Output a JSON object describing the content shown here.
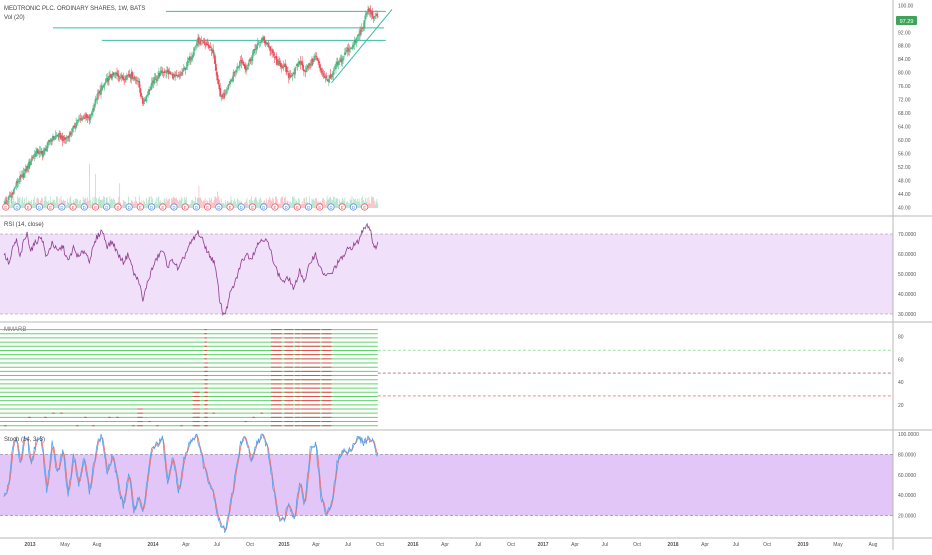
{
  "header": {
    "symbol_line": "MEDTRONIC PLC. ORDINARY SHARES, 1W, BATS",
    "volume_label": "Vol (20)"
  },
  "price_badge": "97.29",
  "colors": {
    "up": "#53b987",
    "down": "#eb4d5c",
    "rsi_line": "#8e3d8e",
    "rsi_band": "#f1e0f9",
    "stoch_band": "#e2c6f8",
    "stoch_k": "#4ba3ee",
    "stoch_d": "#ee6f6f",
    "trendline": "#3cbca4",
    "mma_green": "#61d36d",
    "mma_red": "#e34b4b",
    "badge": "#40a35b"
  },
  "chart_data": [
    {
      "type": "candlestick",
      "name": "price",
      "x_ticks": [
        "2013",
        "May",
        "Aug",
        "2014",
        "Apr",
        "Jul",
        "Oct",
        "2015",
        "Apr",
        "Jul",
        "Oct",
        "2016",
        "Apr",
        "Jul",
        "Oct",
        "2017",
        "Apr",
        "Jul",
        "Oct",
        "2018",
        "Apr",
        "Jul",
        "Oct",
        "2019",
        "May",
        "Aug"
      ],
      "y_ticks": [
        "100.00",
        "96.00",
        "92.00",
        "88.00",
        "84.00",
        "80.00",
        "76.00",
        "72.00",
        "68.00",
        "64.00",
        "60.00",
        "56.00",
        "52.00",
        "48.00",
        "44.00",
        "40.00"
      ],
      "ylim": [
        38,
        101
      ],
      "last_price": 97.29,
      "earnings_marker": "E",
      "dividend_marker": "D",
      "close_path": [
        [
          0,
          41.0
        ],
        [
          8,
          43.5
        ],
        [
          16,
          48.0
        ],
        [
          22,
          49.5
        ],
        [
          30,
          54.0
        ],
        [
          36,
          56.5
        ],
        [
          44,
          56.0
        ],
        [
          52,
          60.0
        ],
        [
          60,
          61.5
        ],
        [
          68,
          60.0
        ],
        [
          76,
          62.5
        ],
        [
          82,
          65.5
        ],
        [
          90,
          67.0
        ],
        [
          96,
          66.0
        ],
        [
          104,
          72.5
        ],
        [
          110,
          75.5
        ],
        [
          118,
          78.5
        ],
        [
          126,
          79.5
        ],
        [
          134,
          78.5
        ],
        [
          140,
          79.5
        ],
        [
          150,
          78.0
        ],
        [
          156,
          71.0
        ],
        [
          160,
          73.0
        ],
        [
          168,
          77.5
        ],
        [
          176,
          80.0
        ],
        [
          182,
          80.5
        ],
        [
          190,
          79.0
        ],
        [
          196,
          78.5
        ],
        [
          204,
          81.5
        ],
        [
          212,
          86.0
        ],
        [
          218,
          89.5
        ],
        [
          226,
          88.5
        ],
        [
          232,
          87.5
        ],
        [
          236,
          85.0
        ],
        [
          240,
          77.0
        ],
        [
          244,
          72.5
        ],
        [
          248,
          74.0
        ],
        [
          254,
          77.5
        ],
        [
          260,
          80.5
        ],
        [
          266,
          83.5
        ],
        [
          272,
          81.5
        ],
        [
          278,
          84.5
        ],
        [
          284,
          88.0
        ],
        [
          290,
          90.0
        ],
        [
          296,
          88.5
        ],
        [
          302,
          85.5
        ],
        [
          308,
          82.5
        ],
        [
          314,
          82.0
        ],
        [
          320,
          79.0
        ],
        [
          326,
          80.0
        ],
        [
          332,
          83.5
        ],
        [
          338,
          80.5
        ],
        [
          344,
          82.5
        ],
        [
          350,
          85.0
        ],
        [
          356,
          81.0
        ],
        [
          362,
          78.0
        ],
        [
          368,
          78.5
        ],
        [
          374,
          82.5
        ],
        [
          380,
          84.0
        ],
        [
          386,
          87.0
        ],
        [
          392,
          88.0
        ],
        [
          398,
          91.0
        ],
        [
          404,
          94.0
        ],
        [
          408,
          98.5
        ],
        [
          412,
          98.0
        ],
        [
          416,
          96.0
        ],
        [
          420,
          97.29
        ]
      ],
      "volume_spikes": [
        [
          96,
          80
        ],
        [
          103,
          62
        ],
        [
          130,
          45
        ],
        [
          219,
          40
        ],
        [
          240,
          30
        ]
      ],
      "resistance_levels": [
        {
          "value": 98.2,
          "from_week": 182,
          "to_week": 420
        },
        {
          "value": 93.3,
          "from_week": 55,
          "to_week": 418
        },
        {
          "value": 89.6,
          "from_week": 110,
          "to_week": 420
        }
      ],
      "support_trendline": [
        [
          368,
          77.0
        ],
        [
          436,
          98.8
        ]
      ]
    },
    {
      "type": "line",
      "name": "RSI (14, close)",
      "y_ticks": [
        "70.0000",
        "60.0000",
        "50.0000",
        "40.0000",
        "30.0000"
      ],
      "ylim": [
        27,
        77
      ],
      "upper_band": 70,
      "lower_band": 30,
      "values_path": [
        [
          0,
          60
        ],
        [
          6,
          55
        ],
        [
          10,
          63
        ],
        [
          14,
          67
        ],
        [
          18,
          58
        ],
        [
          22,
          66
        ],
        [
          26,
          70
        ],
        [
          30,
          62
        ],
        [
          36,
          66
        ],
        [
          42,
          69
        ],
        [
          48,
          58
        ],
        [
          54,
          66
        ],
        [
          60,
          61
        ],
        [
          66,
          64
        ],
        [
          72,
          56
        ],
        [
          78,
          63
        ],
        [
          84,
          58
        ],
        [
          90,
          62
        ],
        [
          96,
          57
        ],
        [
          104,
          68
        ],
        [
          110,
          72
        ],
        [
          116,
          64
        ],
        [
          122,
          66
        ],
        [
          128,
          60
        ],
        [
          134,
          56
        ],
        [
          140,
          60
        ],
        [
          146,
          50
        ],
        [
          152,
          46
        ],
        [
          156,
          36
        ],
        [
          160,
          44
        ],
        [
          166,
          52
        ],
        [
          172,
          58
        ],
        [
          178,
          62
        ],
        [
          184,
          54
        ],
        [
          190,
          57
        ],
        [
          196,
          52
        ],
        [
          202,
          58
        ],
        [
          208,
          64
        ],
        [
          214,
          68
        ],
        [
          218,
          71
        ],
        [
          224,
          66
        ],
        [
          230,
          60
        ],
        [
          236,
          56
        ],
        [
          240,
          46
        ],
        [
          242,
          38
        ],
        [
          246,
          30
        ],
        [
          250,
          32
        ],
        [
          254,
          40
        ],
        [
          260,
          46
        ],
        [
          266,
          55
        ],
        [
          272,
          60
        ],
        [
          278,
          58
        ],
        [
          284,
          64
        ],
        [
          290,
          68
        ],
        [
          296,
          66
        ],
        [
          302,
          58
        ],
        [
          308,
          50
        ],
        [
          314,
          46
        ],
        [
          320,
          48
        ],
        [
          326,
          42
        ],
        [
          332,
          52
        ],
        [
          338,
          46
        ],
        [
          344,
          56
        ],
        [
          350,
          60
        ],
        [
          356,
          52
        ],
        [
          362,
          49
        ],
        [
          368,
          50
        ],
        [
          374,
          55
        ],
        [
          380,
          58
        ],
        [
          386,
          62
        ],
        [
          392,
          64
        ],
        [
          398,
          66
        ],
        [
          404,
          73
        ],
        [
          408,
          75
        ],
        [
          412,
          72
        ],
        [
          416,
          62
        ],
        [
          420,
          66
        ]
      ]
    },
    {
      "type": "ribbon",
      "name": "MMARB",
      "y_ticks": [
        "80",
        "60",
        "40",
        "20"
      ],
      "ylim": [
        0,
        90
      ],
      "line_count": 24,
      "reference_levels": [
        {
          "value": 68,
          "color": "#61d36d"
        },
        {
          "value": 48,
          "color": "#8c3d3d"
        },
        {
          "value": 28,
          "color": "#e34b4b"
        }
      ],
      "red_zones": [
        {
          "from_week": 225,
          "to_week": 228,
          "lines": 24
        },
        {
          "from_week": 226,
          "to_week": 229,
          "lines": 16
        },
        {
          "from_week": 212,
          "to_week": 220,
          "lines": 9
        },
        {
          "from_week": 150,
          "to_week": 156,
          "lines": 5
        },
        {
          "from_week": 300,
          "to_week": 312,
          "lines": 24
        },
        {
          "from_week": 315,
          "to_week": 325,
          "lines": 24
        },
        {
          "from_week": 327,
          "to_week": 333,
          "lines": 24
        },
        {
          "from_week": 334,
          "to_week": 355,
          "lines": 24
        },
        {
          "from_week": 357,
          "to_week": 368,
          "lines": 24
        }
      ]
    },
    {
      "type": "line",
      "name": "Stoch (14, 3, 3)",
      "y_ticks": [
        "100.0000",
        "80.0000",
        "60.0000",
        "40.0000",
        "20.0000"
      ],
      "ylim": [
        0,
        102
      ],
      "upper_band": 80,
      "lower_band": 20,
      "k_path": [
        [
          0,
          35
        ],
        [
          6,
          55
        ],
        [
          10,
          88
        ],
        [
          14,
          95
        ],
        [
          18,
          70
        ],
        [
          22,
          92
        ],
        [
          26,
          98
        ],
        [
          30,
          70
        ],
        [
          36,
          92
        ],
        [
          42,
          95
        ],
        [
          48,
          45
        ],
        [
          54,
          90
        ],
        [
          60,
          60
        ],
        [
          66,
          85
        ],
        [
          72,
          40
        ],
        [
          78,
          82
        ],
        [
          84,
          50
        ],
        [
          90,
          80
        ],
        [
          96,
          40
        ],
        [
          104,
          90
        ],
        [
          110,
          98
        ],
        [
          116,
          60
        ],
        [
          122,
          80
        ],
        [
          128,
          50
        ],
        [
          134,
          30
        ],
        [
          140,
          60
        ],
        [
          146,
          25
        ],
        [
          152,
          40
        ],
        [
          156,
          20
        ],
        [
          160,
          50
        ],
        [
          166,
          85
        ],
        [
          172,
          90
        ],
        [
          178,
          95
        ],
        [
          184,
          50
        ],
        [
          190,
          80
        ],
        [
          196,
          40
        ],
        [
          202,
          75
        ],
        [
          208,
          92
        ],
        [
          214,
          98
        ],
        [
          218,
          95
        ],
        [
          224,
          70
        ],
        [
          230,
          55
        ],
        [
          236,
          40
        ],
        [
          240,
          20
        ],
        [
          244,
          10
        ],
        [
          248,
          5
        ],
        [
          254,
          30
        ],
        [
          260,
          60
        ],
        [
          266,
          92
        ],
        [
          272,
          96
        ],
        [
          278,
          70
        ],
        [
          284,
          92
        ],
        [
          290,
          98
        ],
        [
          296,
          88
        ],
        [
          302,
          50
        ],
        [
          308,
          20
        ],
        [
          314,
          15
        ],
        [
          320,
          35
        ],
        [
          326,
          15
        ],
        [
          332,
          55
        ],
        [
          338,
          30
        ],
        [
          344,
          85
        ],
        [
          350,
          92
        ],
        [
          356,
          40
        ],
        [
          362,
          20
        ],
        [
          368,
          30
        ],
        [
          374,
          70
        ],
        [
          380,
          85
        ],
        [
          386,
          80
        ],
        [
          392,
          90
        ],
        [
          398,
          96
        ],
        [
          404,
          92
        ],
        [
          410,
          96
        ],
        [
          416,
          90
        ],
        [
          420,
          80
        ]
      ]
    }
  ]
}
